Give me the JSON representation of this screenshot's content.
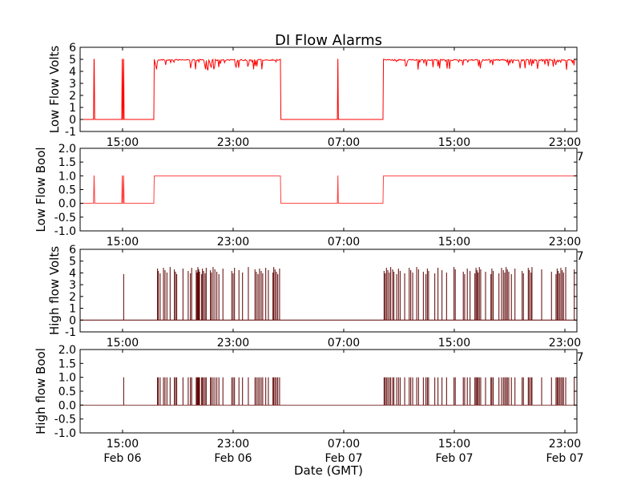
{
  "chart_data": {
    "type": "line",
    "title": "DI Flow Alarms",
    "xlabel": "Date (GMT)",
    "x_units": "hours since Feb 06 00:00 GMT",
    "xlim": [
      11.93,
      47.87
    ],
    "x_ticks": [
      {
        "t": 15,
        "time": "15:00",
        "date": "Feb 06"
      },
      {
        "t": 23,
        "time": "23:00",
        "date": "Feb 06"
      },
      {
        "t": 31,
        "time": "07:00",
        "date": "Feb 07"
      },
      {
        "t": 39,
        "time": "15:00",
        "date": "Feb 07"
      },
      {
        "t": 47,
        "time": "23:00",
        "date": "Feb 07"
      }
    ],
    "colors": {
      "low": "#ff0000",
      "high": "#5c0000"
    },
    "low_flow_on_intervals": [
      [
        12.9,
        12.95
      ],
      [
        14.94,
        14.98
      ],
      [
        15.04,
        15.08
      ],
      [
        17.26,
        26.42
      ],
      [
        30.54,
        30.58
      ],
      [
        33.84,
        47.87
      ]
    ],
    "high_flow_spikes": [
      15.08,
      17.53,
      17.59,
      17.72,
      17.96,
      18.07,
      18.21,
      18.44,
      18.75,
      18.83,
      18.92,
      19.37,
      19.75,
      19.91,
      20.0,
      20.33,
      20.39,
      20.45,
      20.51,
      20.57,
      20.72,
      20.78,
      20.86,
      20.97,
      21.05,
      21.36,
      21.43,
      21.55,
      21.68,
      21.82,
      21.97,
      22.26,
      22.9,
      23.0,
      23.1,
      23.42,
      23.68,
      24.1,
      24.58,
      24.68,
      24.8,
      24.91,
      25.03,
      25.14,
      25.36,
      25.55,
      25.88,
      25.94,
      26.03,
      26.13,
      26.23,
      26.36,
      33.92,
      34.0,
      34.09,
      34.19,
      34.3,
      34.4,
      34.54,
      34.63,
      34.83,
      34.96,
      35.08,
      35.41,
      35.74,
      35.85,
      35.99,
      36.28,
      36.41,
      36.76,
      36.95,
      37.05,
      37.14,
      37.59,
      37.82,
      38.11,
      38.44,
      38.98,
      39.07,
      39.65,
      39.75,
      39.94,
      40.14,
      40.49,
      40.57,
      40.64,
      40.72,
      40.81,
      40.91,
      41.26,
      41.65,
      41.72,
      41.82,
      42.23,
      42.42,
      42.55,
      42.65,
      42.75,
      42.84,
      42.94,
      43.13,
      43.39,
      43.91,
      44.0,
      44.35,
      44.43,
      44.55,
      44.62,
      45.32,
      46.03,
      46.36,
      46.44,
      46.52,
      46.61,
      46.71,
      46.81,
      46.9,
      47.06,
      47.68
    ],
    "panels": [
      {
        "id": "low-flow-volts",
        "ylabel": "Low Flow Volts",
        "ylim": [
          -1,
          6
        ],
        "yticks": [
          "-1",
          "0",
          "1",
          "2",
          "3",
          "4",
          "5",
          "6"
        ],
        "series": "low",
        "kind": "volts",
        "on_value": 5,
        "off_value": 0
      },
      {
        "id": "low-flow-bool",
        "ylabel": "Low Flow Bool",
        "ylim": [
          -1,
          2
        ],
        "yticks": [
          "-1.0",
          "-0.5",
          "0.0",
          "0.5",
          "1.0",
          "1.5",
          "2.0"
        ],
        "series": "low",
        "kind": "bool",
        "on_value": 1,
        "off_value": 0
      },
      {
        "id": "high-flow-volts",
        "ylabel": "High flow Volts",
        "ylim": [
          -1,
          6
        ],
        "yticks": [
          "-1",
          "0",
          "1",
          "2",
          "3",
          "4",
          "5",
          "6"
        ],
        "series": "high",
        "kind": "volts",
        "on_value": 4.3,
        "off_value": 0
      },
      {
        "id": "high-flow-bool",
        "ylabel": "High flow Bool",
        "ylim": [
          -1,
          2
        ],
        "yticks": [
          "-1.0",
          "-0.5",
          "0.0",
          "0.5",
          "1.0",
          "1.5",
          "2.0"
        ],
        "series": "high",
        "kind": "bool",
        "on_value": 1,
        "off_value": 0
      }
    ]
  }
}
